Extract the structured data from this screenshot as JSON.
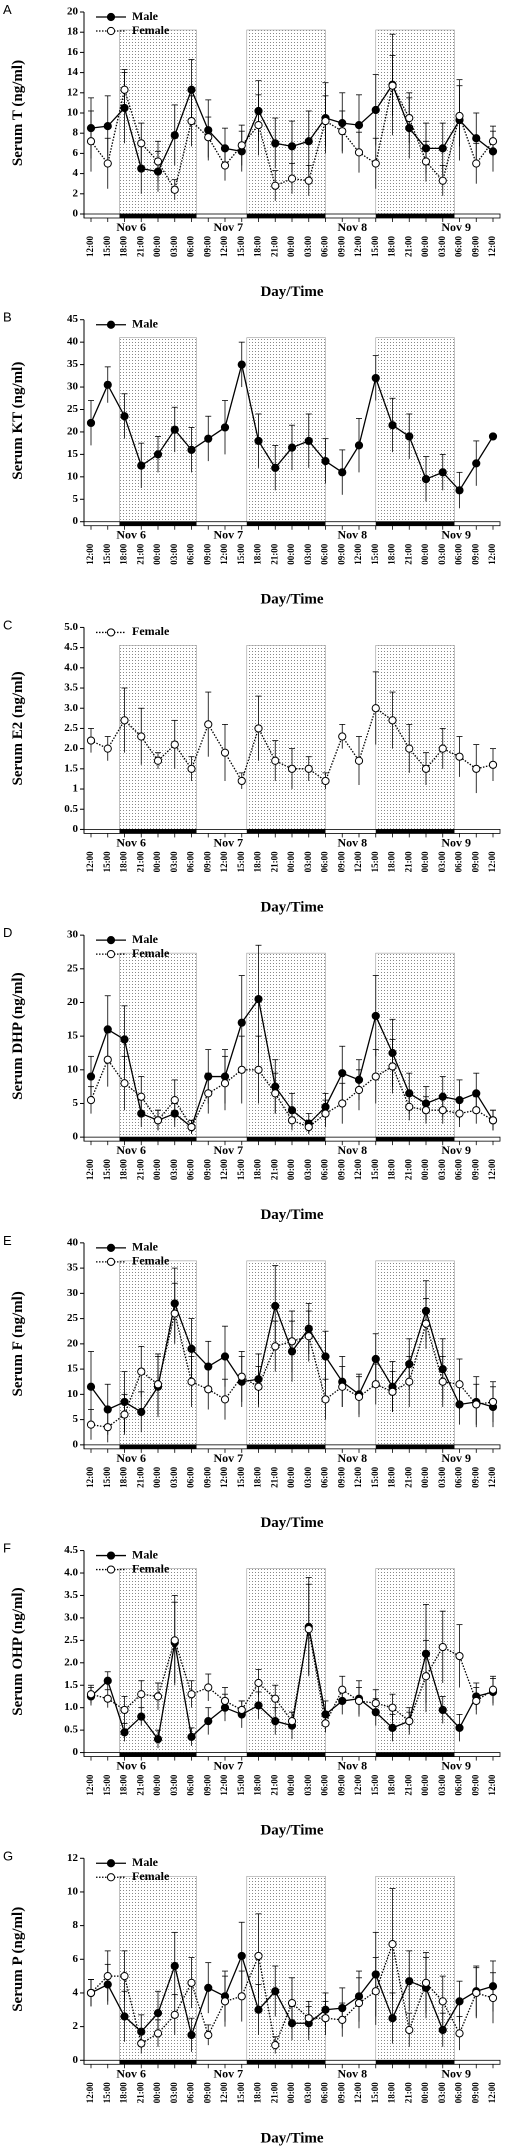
{
  "chart_data": [
    {
      "type": "line",
      "panel_label": "A",
      "ylabel": "Serum T (ng/ml)",
      "xlabel": "Day/Time",
      "categories": [
        "12:00",
        "15:00",
        "18:00",
        "21:00",
        "00:00",
        "03:00",
        "06:00",
        "09:00",
        "12:00",
        "15:00",
        "18:00",
        "21:00",
        "00:00",
        "03:00",
        "06:00",
        "09:00",
        "12:00",
        "15:00",
        "18:00",
        "21:00",
        "00:00",
        "03:00",
        "06:00",
        "09:00",
        "12:00"
      ],
      "day_labels": [
        "Nov 6",
        "Nov 7",
        "Nov 8",
        "Nov 9"
      ],
      "ylim": [
        0,
        20
      ],
      "yticks": [
        0,
        2,
        4,
        6,
        8,
        10,
        12,
        14,
        16,
        18,
        20
      ],
      "series": [
        {
          "name": "Male",
          "color": "#000000",
          "marker": "filled",
          "line_style": "solid",
          "values": [
            8.5,
            8.7,
            10.5,
            4.5,
            4.2,
            7.8,
            12.3,
            8.3,
            6.5,
            6.2,
            10.2,
            7,
            6.7,
            7.2,
            9.5,
            9,
            8.8,
            10.3,
            12.8,
            8.5,
            6.5,
            6.5,
            9.3,
            7.5,
            6.2
          ],
          "errors": [
            3,
            3,
            3.5,
            2.5,
            2,
            3,
            3,
            3,
            2,
            2,
            3,
            2.5,
            2.5,
            3,
            3.5,
            3,
            3,
            3.5,
            5,
            3,
            2.5,
            2.5,
            4,
            2.5,
            2
          ]
        },
        {
          "name": "Female",
          "color": "#000000",
          "marker": "open",
          "line_style": "dotted",
          "values": [
            7.2,
            5,
            12.3,
            7,
            5.2,
            2.4,
            9.2,
            7.6,
            4.8,
            6.8,
            8.8,
            2.8,
            3.5,
            3.3,
            9.2,
            8.2,
            6.1,
            5,
            12.7,
            9.5,
            5.2,
            3.3,
            9.7,
            5,
            7.2
          ],
          "errors": [
            3,
            2.5,
            2,
            2,
            2,
            1,
            2.5,
            2,
            1.5,
            2,
            3,
            1.5,
            1.5,
            1.5,
            2.5,
            2,
            2,
            2.5,
            3,
            2.5,
            2,
            1.5,
            3,
            2,
            1.5
          ]
        }
      ]
    },
    {
      "type": "line",
      "panel_label": "B",
      "ylabel": "Serum KT (ng/ml)",
      "xlabel": "Day/Time",
      "categories": [
        "12:00",
        "15:00",
        "18:00",
        "21:00",
        "00:00",
        "03:00",
        "06:00",
        "09:00",
        "12:00",
        "15:00",
        "18:00",
        "21:00",
        "00:00",
        "03:00",
        "06:00",
        "09:00",
        "12:00",
        "15:00",
        "18:00",
        "21:00",
        "00:00",
        "03:00",
        "06:00",
        "09:00",
        "12:00"
      ],
      "day_labels": [
        "Nov 6",
        "Nov 7",
        "Nov 8",
        "Nov 9"
      ],
      "ylim": [
        0,
        45
      ],
      "yticks": [
        0,
        5,
        10,
        15,
        20,
        25,
        30,
        35,
        40,
        45
      ],
      "series": [
        {
          "name": "Male",
          "color": "#000000",
          "marker": "filled",
          "line_style": "solid",
          "values": [
            22,
            30.5,
            23.5,
            12.5,
            15,
            20.5,
            16,
            18.5,
            21,
            35,
            18,
            12,
            16.5,
            18,
            13.5,
            11,
            17,
            32,
            21.5,
            19,
            9.5,
            11,
            7,
            13,
            19
          ],
          "errors": [
            5,
            4,
            5,
            5,
            4,
            5,
            5,
            5,
            6,
            5,
            6,
            5,
            5,
            6,
            5,
            5,
            6,
            5,
            6,
            5,
            5,
            4,
            4,
            5,
            null
          ]
        }
      ]
    },
    {
      "type": "line",
      "panel_label": "C",
      "ylabel": "Serum E2 (ng/ml)",
      "xlabel": "Day/Time",
      "categories": [
        "12:00",
        "15:00",
        "18:00",
        "21:00",
        "00:00",
        "03:00",
        "06:00",
        "09:00",
        "12:00",
        "15:00",
        "18:00",
        "21:00",
        "00:00",
        "03:00",
        "06:00",
        "09:00",
        "12:00",
        "15:00",
        "18:00",
        "21:00",
        "00:00",
        "03:00",
        "06:00",
        "09:00",
        "12:00"
      ],
      "day_labels": [
        "Nov 6",
        "Nov 7",
        "Nov 8",
        "Nov 9"
      ],
      "ylim": [
        0,
        5
      ],
      "yticks": [
        0,
        0.5,
        1,
        1.5,
        {
          "value": 2,
          "label": "2.0"
        },
        2.5,
        {
          "value": 3,
          "label": "3.0"
        },
        3.5,
        {
          "value": 4,
          "label": "4.0"
        },
        4.5,
        {
          "value": 5,
          "label": "5.0"
        }
      ],
      "series": [
        {
          "name": "Female",
          "color": "#000000",
          "marker": "open",
          "line_style": "dotted",
          "values": [
            2.2,
            2.0,
            2.7,
            2.3,
            1.7,
            2.1,
            1.5,
            2.6,
            1.9,
            1.2,
            2.5,
            1.7,
            1.5,
            1.5,
            1.2,
            2.3,
            1.7,
            3.0,
            2.7,
            2.0,
            1.5,
            2.0,
            1.8,
            1.5,
            1.6
          ],
          "errors": [
            0.3,
            0.3,
            0.8,
            0.7,
            0.2,
            0.6,
            0.3,
            0.8,
            0.7,
            0.2,
            0.8,
            0.5,
            0.5,
            0.3,
            0.2,
            0.3,
            0.6,
            0.9,
            0.7,
            0.6,
            0.4,
            0.5,
            0.5,
            0.6,
            0.4
          ]
        }
      ]
    },
    {
      "type": "line",
      "panel_label": "D",
      "ylabel": "Serum DHP (ng/ml)",
      "xlabel": "Day/Time",
      "categories": [
        "12:00",
        "15:00",
        "18:00",
        "21:00",
        "00:00",
        "03:00",
        "06:00",
        "09:00",
        "12:00",
        "15:00",
        "18:00",
        "21:00",
        "00:00",
        "03:00",
        "06:00",
        "09:00",
        "12:00",
        "15:00",
        "18:00",
        "21:00",
        "00:00",
        "03:00",
        "06:00",
        "09:00",
        "12:00"
      ],
      "day_labels": [
        "Nov 6",
        "Nov 7",
        "Nov 8",
        "Nov 9"
      ],
      "ylim": [
        0,
        30
      ],
      "yticks": [
        0,
        5,
        10,
        15,
        20,
        25,
        30
      ],
      "series": [
        {
          "name": "Male",
          "color": "#000000",
          "marker": "filled",
          "line_style": "solid",
          "values": [
            9,
            16,
            14.5,
            3.5,
            2.5,
            3.5,
            1.5,
            9,
            9,
            17,
            20.5,
            7.5,
            4,
            2,
            4.5,
            9.5,
            8.5,
            18,
            12.5,
            6.5,
            5,
            6,
            5.5,
            6.5,
            2.5
          ],
          "errors": [
            3,
            5,
            5,
            2,
            1.5,
            2,
            1,
            4,
            4,
            7,
            8,
            4,
            2.5,
            1.5,
            2,
            4,
            3,
            6,
            5,
            3,
            2.5,
            3,
            3,
            3,
            1.5
          ]
        },
        {
          "name": "Female",
          "color": "#000000",
          "marker": "open",
          "line_style": "dotted",
          "values": [
            5.5,
            11.5,
            8,
            6,
            2.5,
            5.5,
            1.5,
            6.5,
            8,
            10,
            10,
            6.5,
            2.5,
            1.5,
            3.5,
            5,
            7,
            9,
            10.5,
            4.5,
            4,
            4,
            3.5,
            4,
            2.5
          ],
          "errors": [
            2,
            4,
            4,
            3,
            1.5,
            3,
            1,
            3,
            4,
            5,
            5,
            3,
            1.5,
            1,
            2,
            3,
            3,
            4,
            4,
            2,
            2,
            2,
            2,
            2,
            1.5
          ]
        }
      ]
    },
    {
      "type": "line",
      "panel_label": "E",
      "ylabel": "Serum F (ng/ml)",
      "xlabel": "Day/Time",
      "categories": [
        "12:00",
        "15:00",
        "18:00",
        "21:00",
        "00:00",
        "03:00",
        "06:00",
        "09:00",
        "12:00",
        "15:00",
        "18:00",
        "21:00",
        "00:00",
        "03:00",
        "06:00",
        "09:00",
        "12:00",
        "15:00",
        "18:00",
        "21:00",
        "00:00",
        "03:00",
        "06:00",
        "09:00",
        "12:00"
      ],
      "day_labels": [
        "Nov 6",
        "Nov 7",
        "Nov 8",
        "Nov 9"
      ],
      "ylim": [
        0,
        40
      ],
      "yticks": [
        0,
        5,
        10,
        15,
        20,
        25,
        30,
        35,
        40
      ],
      "series": [
        {
          "name": "Male",
          "color": "#000000",
          "marker": "filled",
          "line_style": "solid",
          "values": [
            11.5,
            7,
            8.5,
            6.5,
            11.5,
            28,
            19,
            15.5,
            17.5,
            12.5,
            13,
            27.5,
            18.5,
            23,
            17.5,
            12.5,
            10,
            17,
            11.5,
            16,
            26.5,
            15,
            8,
            8.5,
            7.5
          ],
          "errors": [
            7,
            5,
            6,
            4,
            6,
            7,
            6,
            5,
            6,
            5,
            5,
            8,
            6,
            5,
            5,
            5,
            4,
            5,
            5,
            5,
            6,
            6,
            4,
            5,
            4
          ]
        },
        {
          "name": "Female",
          "color": "#000000",
          "marker": "open",
          "line_style": "dotted",
          "values": [
            4,
            3.5,
            6,
            14.5,
            12,
            26,
            12.5,
            11,
            9,
            13.5,
            11.5,
            19.5,
            20.5,
            21.5,
            9,
            11.5,
            9.5,
            12,
            10.5,
            12.5,
            24,
            12.5,
            12,
            8,
            8.5
          ],
          "errors": [
            3,
            3,
            4,
            5,
            6,
            6,
            5,
            4,
            4,
            5,
            4,
            5,
            6,
            5,
            4,
            4,
            4,
            4,
            4,
            5,
            5,
            5,
            5,
            4,
            4
          ]
        }
      ]
    },
    {
      "type": "line",
      "panel_label": "F",
      "ylabel": "Serum OHP (ng/ml)",
      "xlabel": "Day/Time",
      "categories": [
        "12:00",
        "15:00",
        "18:00",
        "21:00",
        "00:00",
        "03:00",
        "06:00",
        "09:00",
        "12:00",
        "15:00",
        "18:00",
        "21:00",
        "00:00",
        "03:00",
        "06:00",
        "09:00",
        "12:00",
        "15:00",
        "18:00",
        "21:00",
        "00:00",
        "03:00",
        "06:00",
        "09:00",
        "12:00"
      ],
      "day_labels": [
        "Nov 6",
        "Nov 7",
        "Nov 8",
        "Nov 9"
      ],
      "ylim": [
        0,
        4.5
      ],
      "yticks": [
        0,
        0.5,
        {
          "value": 1,
          "label": "1.0"
        },
        1.5,
        {
          "value": 2,
          "label": "2.0"
        },
        2.5,
        {
          "value": 3,
          "label": "3.0"
        },
        3.5,
        {
          "value": 4,
          "label": "4.0"
        },
        4.5
      ],
      "series": [
        {
          "name": "Male",
          "color": "#000000",
          "marker": "filled",
          "line_style": "solid",
          "values": [
            1.25,
            1.6,
            0.45,
            0.8,
            0.3,
            2.45,
            0.35,
            0.7,
            1.0,
            0.85,
            1.05,
            0.7,
            0.6,
            2.8,
            0.85,
            1.15,
            1.2,
            0.9,
            0.55,
            0.7,
            2.2,
            0.95,
            0.55,
            1.25,
            1.35
          ],
          "errors": [
            0.2,
            0.2,
            0.2,
            0.2,
            0.2,
            0.9,
            0.2,
            0.3,
            0.3,
            0.3,
            0.3,
            0.3,
            0.3,
            1.1,
            0.3,
            0.3,
            0.4,
            0.3,
            0.3,
            0.3,
            1.1,
            0.3,
            0.3,
            0.3,
            0.3
          ]
        },
        {
          "name": "Female",
          "color": "#000000",
          "marker": "open",
          "line_style": "dotted",
          "values": [
            1.3,
            1.2,
            0.95,
            1.3,
            1.25,
            2.5,
            1.3,
            1.45,
            1.15,
            0.95,
            1.55,
            1.2,
            0.7,
            2.75,
            0.65,
            1.4,
            1.15,
            1.1,
            1.0,
            0.7,
            1.7,
            2.35,
            2.15,
            1.15,
            1.4
          ],
          "errors": [
            0.2,
            0.2,
            0.3,
            0.3,
            0.3,
            1.0,
            0.3,
            0.3,
            0.3,
            0.2,
            0.3,
            0.3,
            0.2,
            1.0,
            0.2,
            0.3,
            0.3,
            0.3,
            0.3,
            0.2,
            0.8,
            0.8,
            0.7,
            0.3,
            0.3
          ]
        }
      ]
    },
    {
      "type": "line",
      "panel_label": "G",
      "ylabel": "Serum P (ng/ml)",
      "xlabel": "Day/Time",
      "categories": [
        "12:00",
        "15:00",
        "18:00",
        "21:00",
        "00:00",
        "03:00",
        "06:00",
        "09:00",
        "12:00",
        "15:00",
        "18:00",
        "21:00",
        "00:00",
        "03:00",
        "06:00",
        "09:00",
        "12:00",
        "15:00",
        "18:00",
        "21:00",
        "00:00",
        "03:00",
        "06:00",
        "09:00",
        "12:00"
      ],
      "day_labels": [
        "Nov 6",
        "Nov 7",
        "Nov 8",
        "Nov 9"
      ],
      "ylim": [
        0,
        12
      ],
      "yticks": [
        0,
        2,
        4,
        6,
        8,
        10,
        12
      ],
      "series": [
        {
          "name": "Male",
          "color": "#000000",
          "marker": "filled",
          "line_style": "solid",
          "values": [
            4,
            4.5,
            2.6,
            1.7,
            2.8,
            5.6,
            1.5,
            4.3,
            3.8,
            6.2,
            3,
            4.1,
            2.2,
            2.2,
            3,
            3.1,
            3.8,
            5.1,
            2.5,
            4.7,
            4.3,
            1.8,
            3.5,
            4.1,
            4.4
          ],
          "errors": [
            0.8,
            1.2,
            1.5,
            1,
            1.3,
            2,
            1,
            1.5,
            1.5,
            2,
            1.5,
            1.5,
            1,
            1,
            1,
            1.2,
            1.5,
            2.5,
            1.5,
            1.8,
            1.8,
            1,
            1.2,
            1.5,
            1.5
          ]
        },
        {
          "name": "Female",
          "color": "#000000",
          "marker": "open",
          "line_style": "dotted",
          "values": [
            4,
            5,
            5,
            1,
            1.6,
            2.7,
            4.6,
            1.5,
            3.5,
            3.8,
            6.2,
            0.9,
            3.4,
            2.5,
            2.5,
            2.4,
            3.4,
            4.1,
            6.9,
            1.8,
            4.6,
            3.5,
            1.6,
            4,
            3.7
          ],
          "errors": [
            0.8,
            1.5,
            1.5,
            0.6,
            0.8,
            1.2,
            1.5,
            0.6,
            1.5,
            1.5,
            2.5,
            0.5,
            1.5,
            1,
            1,
            1,
            1.5,
            2,
            3.3,
            1,
            1.8,
            1.5,
            1,
            1.5,
            1.5
          ]
        }
      ]
    }
  ]
}
